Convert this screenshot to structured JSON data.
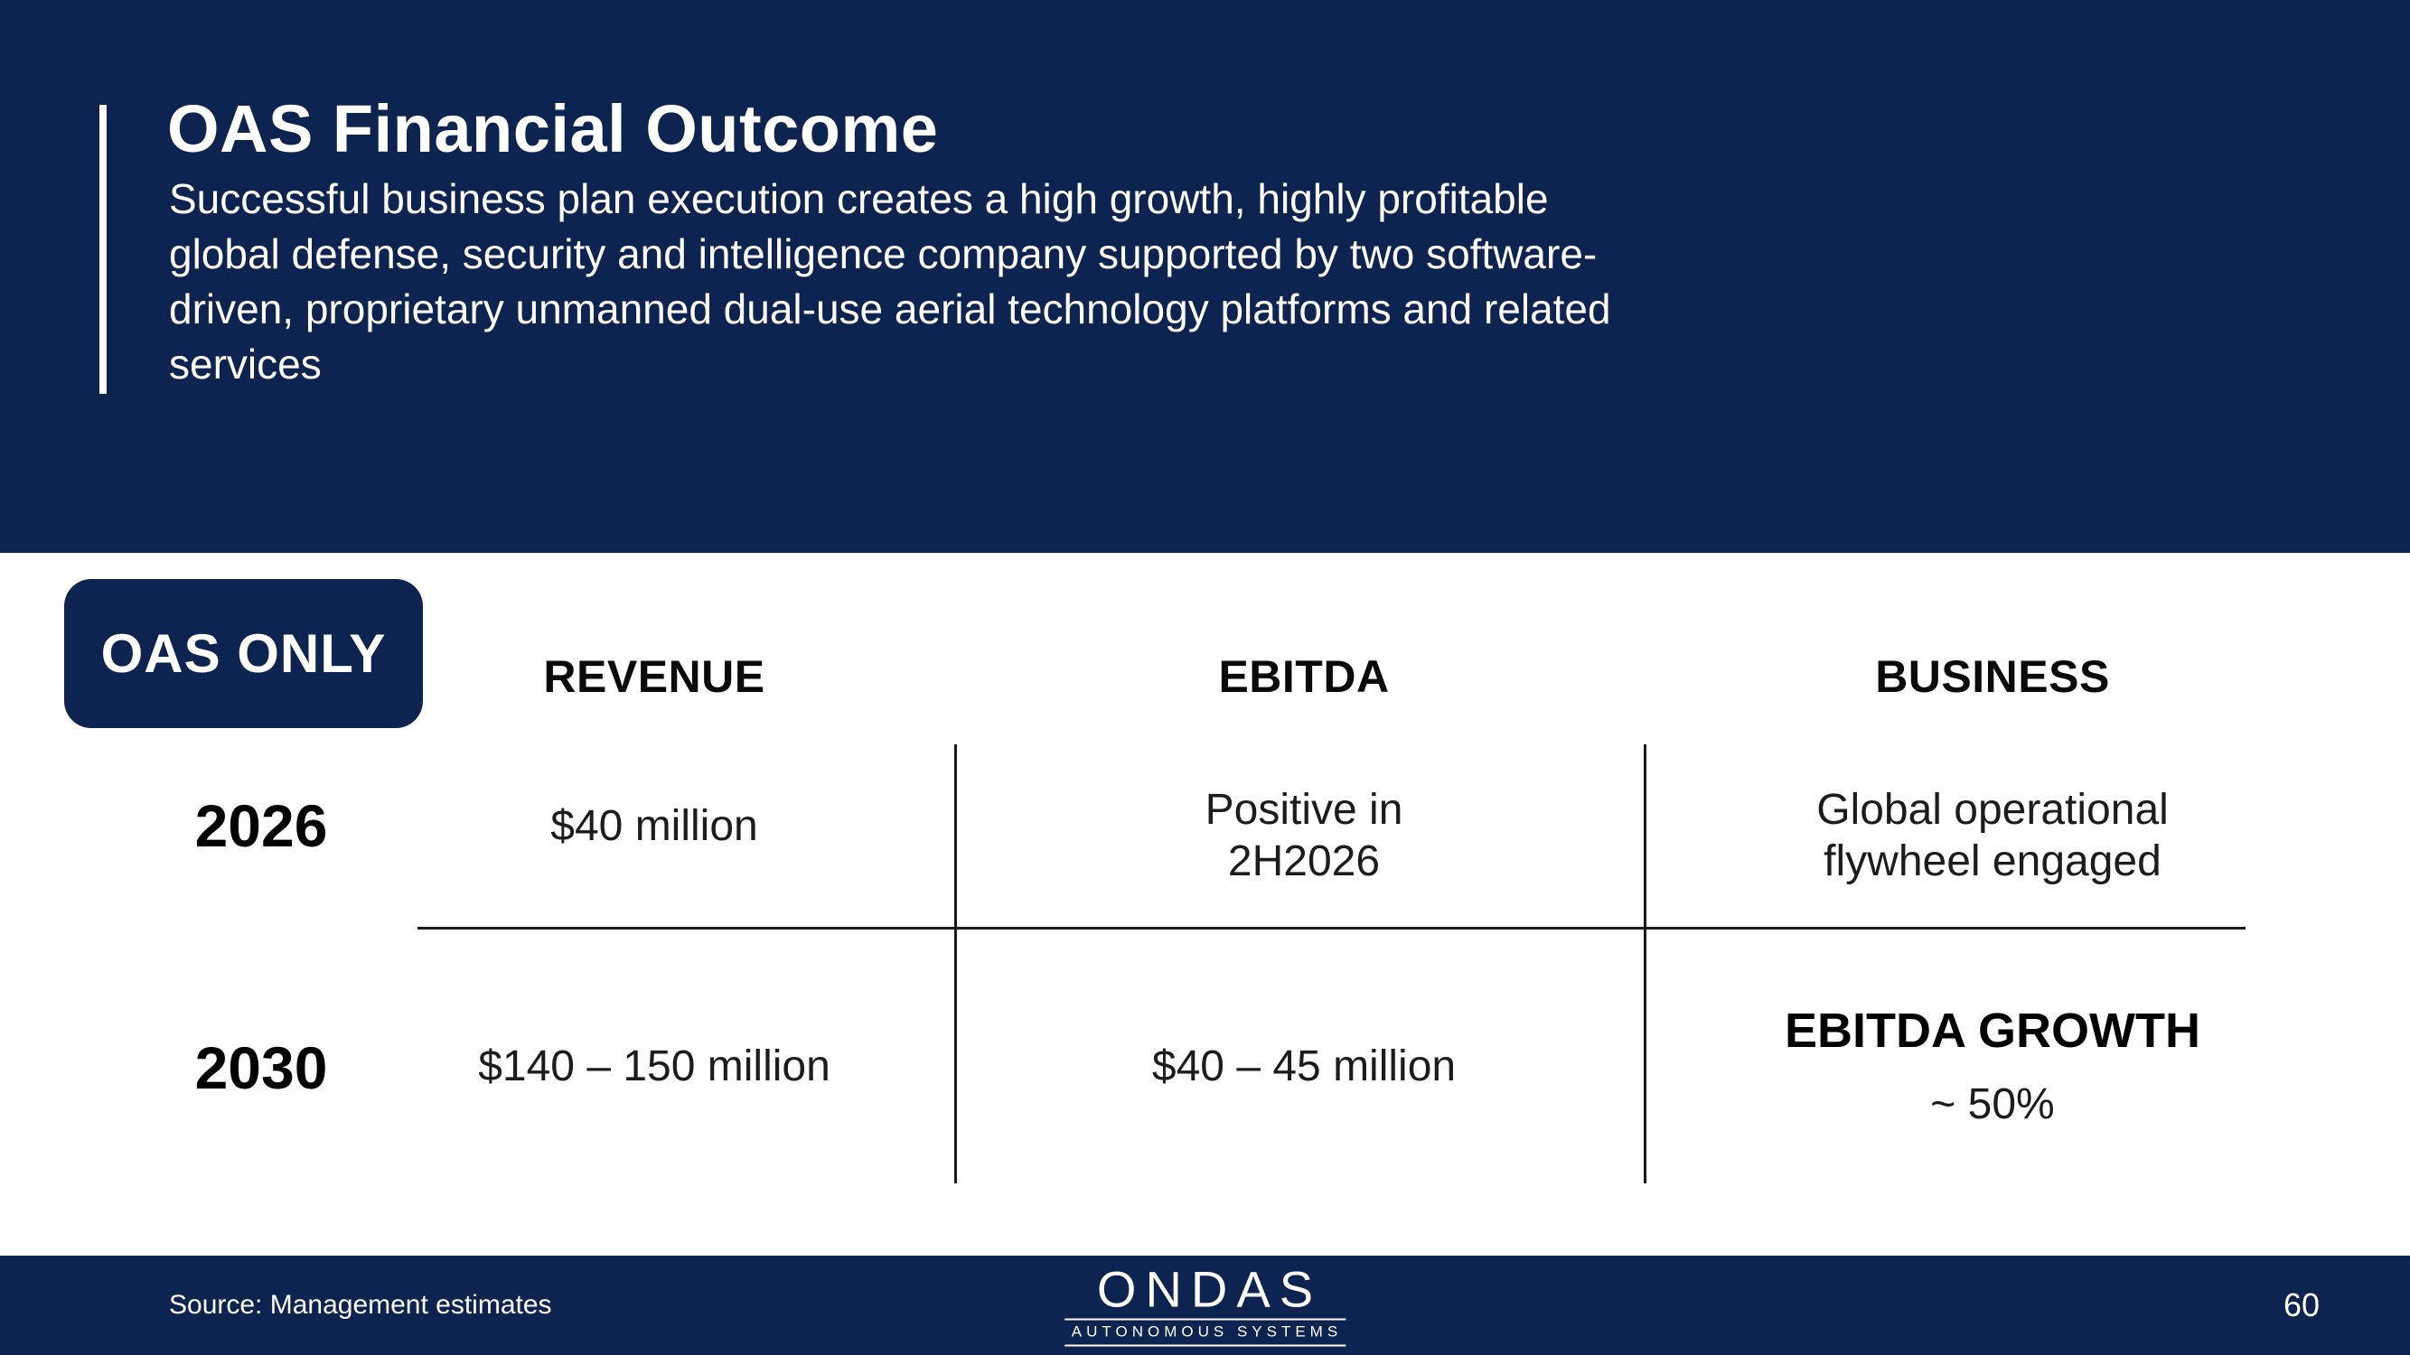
{
  "colors": {
    "navy": "#0d2350",
    "white": "#ffffff",
    "line": "#1a1a1a"
  },
  "header": {
    "title": "OAS Financial Outcome",
    "subtitle_lines": [
      "Successful business plan execution creates a high growth, highly profitable",
      "global defense, security and intelligence company supported by two software-",
      "driven, proprietary unmanned dual-use aerial technology platforms and related",
      "services"
    ]
  },
  "badge": {
    "label": "OAS ONLY"
  },
  "table": {
    "columns": [
      "REVENUE",
      "EBITDA",
      "BUSINESS"
    ],
    "rows": [
      {
        "year": "2026",
        "revenue": "$40 million",
        "ebitda_lines": [
          "Positive in",
          "2H2026"
        ],
        "business_lines": [
          "Global operational",
          "flywheel engaged"
        ]
      },
      {
        "year": "2030",
        "revenue": "$140 – 150 million",
        "ebitda": "$40 – 45 million",
        "business_title": "EBITDA GROWTH",
        "business_value": "~ 50%"
      }
    ]
  },
  "footer": {
    "source": "Source: Management estimates",
    "logo": {
      "name": "ONDAS",
      "tagline": "AUTONOMOUS SYSTEMS"
    },
    "page_number": "60"
  }
}
